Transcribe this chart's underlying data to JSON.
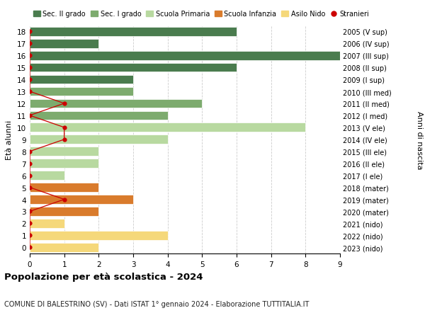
{
  "ages": [
    18,
    17,
    16,
    15,
    14,
    13,
    12,
    11,
    10,
    9,
    8,
    7,
    6,
    5,
    4,
    3,
    2,
    1,
    0
  ],
  "right_labels": [
    "2005 (V sup)",
    "2006 (IV sup)",
    "2007 (III sup)",
    "2008 (II sup)",
    "2009 (I sup)",
    "2010 (III med)",
    "2011 (II med)",
    "2012 (I med)",
    "2013 (V ele)",
    "2014 (IV ele)",
    "2015 (III ele)",
    "2016 (II ele)",
    "2017 (I ele)",
    "2018 (mater)",
    "2019 (mater)",
    "2020 (mater)",
    "2021 (nido)",
    "2022 (nido)",
    "2023 (nido)"
  ],
  "bar_values": [
    6,
    2,
    9,
    6,
    3,
    3,
    5,
    4,
    8,
    4,
    2,
    2,
    1,
    2,
    3,
    2,
    1,
    4,
    2
  ],
  "bar_colors": [
    "#4a7c4e",
    "#4a7c4e",
    "#4a7c4e",
    "#4a7c4e",
    "#4a7c4e",
    "#7dab6e",
    "#7dab6e",
    "#7dab6e",
    "#b8d9a0",
    "#b8d9a0",
    "#b8d9a0",
    "#b8d9a0",
    "#b8d9a0",
    "#d97b2c",
    "#d97b2c",
    "#d97b2c",
    "#f5d87a",
    "#f5d87a",
    "#f5d87a"
  ],
  "stranieri_values": [
    0,
    0,
    0,
    0,
    0,
    0,
    1,
    0,
    1,
    1,
    0,
    0,
    0,
    0,
    1,
    0,
    0,
    0,
    0
  ],
  "stranieri_color": "#cc0000",
  "colors": {
    "sec2": "#4a7c4e",
    "sec1": "#7dab6e",
    "primaria": "#b8d9a0",
    "infanzia": "#d97b2c",
    "nido": "#f5d87a"
  },
  "legend_labels": [
    "Sec. II grado",
    "Sec. I grado",
    "Scuola Primaria",
    "Scuola Infanzia",
    "Asilo Nido",
    "Stranieri"
  ],
  "ylabel": "Età alunni",
  "right_ylabel": "Anni di nascita",
  "title": "Popolazione per età scolastica - 2024",
  "subtitle": "COMUNE DI BALESTRINO (SV) - Dati ISTAT 1° gennaio 2024 - Elaborazione TUTTITALIA.IT",
  "xlim": [
    0,
    9
  ],
  "xticks": [
    0,
    1,
    2,
    3,
    4,
    5,
    6,
    7,
    8,
    9
  ],
  "background_color": "#ffffff",
  "grid_color": "#cccccc"
}
